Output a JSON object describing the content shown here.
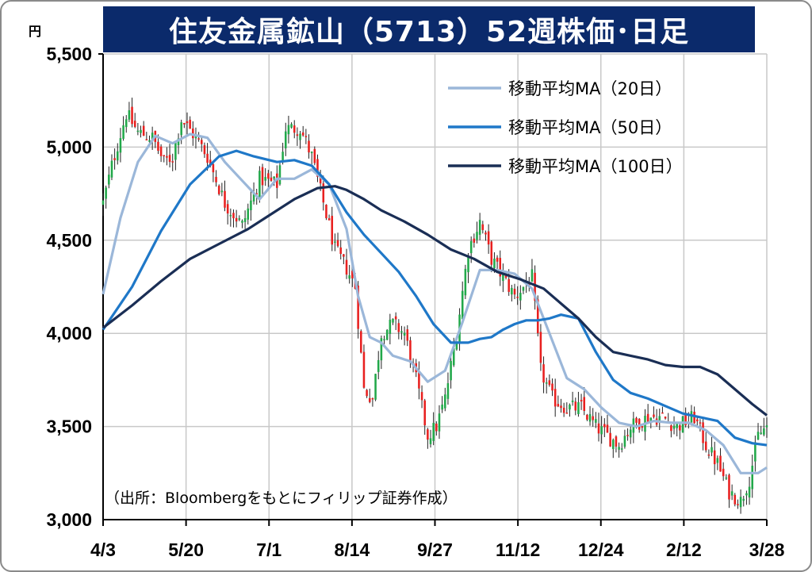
{
  "header": {
    "title": "住友金属鉱山（5713）52週株価･日足",
    "unit_label": "円"
  },
  "source_note": "（出所：Bloombergをもとにフィリップ証券作成）",
  "colors": {
    "title_bg": "#0b2a6b",
    "candle_up": "#22a84a",
    "candle_down": "#e8201f",
    "ma20": "#9bb7d9",
    "ma50": "#1f78c8",
    "ma100": "#1a2e55",
    "grid": "#c8c8c8"
  },
  "chart_data": {
    "type": "candlestick",
    "title": "住友金属鉱山（5713）52週株価･日足",
    "ylabel": "円",
    "ylim": [
      3000,
      5500
    ],
    "yticks": [
      3000,
      3500,
      4000,
      4500,
      5000,
      5500
    ],
    "ytick_labels": [
      "3,000",
      "3,500",
      "4,000",
      "4,500",
      "5,000",
      "5,500"
    ],
    "x_tick_labels": [
      "4/3",
      "5/20",
      "7/1",
      "8/14",
      "9/27",
      "11/12",
      "12/24",
      "2/12",
      "3/28"
    ],
    "grid": true,
    "legend_position": "top-right",
    "candles_description": "approximate daily closes read from chart",
    "close_anchors": [
      [
        0,
        4700
      ],
      [
        3,
        4900
      ],
      [
        8,
        5180
      ],
      [
        12,
        5080
      ],
      [
        17,
        5050
      ],
      [
        21,
        4920
      ],
      [
        24,
        4950
      ],
      [
        27,
        5150
      ],
      [
        32,
        5050
      ],
      [
        36,
        4950
      ],
      [
        42,
        4700
      ],
      [
        48,
        4580
      ],
      [
        54,
        4830
      ],
      [
        60,
        4800
      ],
      [
        63,
        5100
      ],
      [
        68,
        5100
      ],
      [
        72,
        4950
      ],
      [
        76,
        4700
      ],
      [
        80,
        4450
      ],
      [
        84,
        4350
      ],
      [
        87,
        4250
      ],
      [
        90,
        3700
      ],
      [
        93,
        3650
      ],
      [
        96,
        4000
      ],
      [
        100,
        4050
      ],
      [
        104,
        4000
      ],
      [
        108,
        3750
      ],
      [
        112,
        3450
      ],
      [
        115,
        3500
      ],
      [
        118,
        3650
      ],
      [
        122,
        4000
      ],
      [
        126,
        4450
      ],
      [
        130,
        4600
      ],
      [
        134,
        4400
      ],
      [
        138,
        4300
      ],
      [
        142,
        4200
      ],
      [
        148,
        4300
      ],
      [
        151,
        3800
      ],
      [
        155,
        3650
      ],
      [
        160,
        3600
      ],
      [
        165,
        3600
      ],
      [
        170,
        3500
      ],
      [
        174,
        3450
      ],
      [
        178,
        3400
      ],
      [
        182,
        3500
      ],
      [
        188,
        3550
      ],
      [
        193,
        3550
      ],
      [
        198,
        3500
      ],
      [
        204,
        3550
      ],
      [
        208,
        3400
      ],
      [
        212,
        3300
      ],
      [
        216,
        3150
      ],
      [
        220,
        3100
      ],
      [
        223,
        3220
      ],
      [
        226,
        3450
      ],
      [
        229,
        3500
      ]
    ],
    "series": [
      {
        "name": "移動平均MA（20日）",
        "x": [
          0,
          6,
          12,
          18,
          24,
          30,
          36,
          42,
          48,
          54,
          60,
          66,
          72,
          78,
          84,
          88,
          92,
          96,
          100,
          106,
          112,
          118,
          124,
          130,
          136,
          142,
          148,
          154,
          160,
          166,
          172,
          178,
          184,
          190,
          196,
          202,
          208,
          214,
          220,
          226,
          229
        ],
        "values": [
          4210,
          4620,
          4920,
          5060,
          5020,
          5070,
          5050,
          4920,
          4820,
          4720,
          4830,
          4830,
          4880,
          4800,
          4560,
          4200,
          3980,
          3950,
          3880,
          3850,
          3740,
          3800,
          4060,
          4340,
          4340,
          4320,
          4240,
          4000,
          3760,
          3700,
          3600,
          3520,
          3500,
          3530,
          3520,
          3520,
          3480,
          3400,
          3250,
          3250,
          3280
        ]
      },
      {
        "name": "移動平均MA（50日）",
        "x": [
          0,
          10,
          20,
          30,
          40,
          46,
          52,
          60,
          66,
          72,
          78,
          84,
          90,
          96,
          102,
          108,
          114,
          120,
          126,
          130,
          134,
          138,
          142,
          146,
          150,
          154,
          158,
          164,
          170,
          176,
          182,
          188,
          194,
          200,
          206,
          212,
          218,
          224,
          229
        ],
        "values": [
          4020,
          4250,
          4550,
          4800,
          4950,
          4980,
          4950,
          4920,
          4930,
          4900,
          4800,
          4650,
          4530,
          4430,
          4330,
          4200,
          4050,
          3950,
          3950,
          3970,
          3980,
          4020,
          4050,
          4070,
          4070,
          4080,
          4100,
          4080,
          3900,
          3750,
          3680,
          3650,
          3610,
          3570,
          3550,
          3530,
          3440,
          3410,
          3400
        ]
      },
      {
        "name": "移動平均MA（100日）",
        "x": [
          0,
          10,
          20,
          30,
          40,
          50,
          58,
          66,
          74,
          80,
          84,
          90,
          96,
          104,
          112,
          120,
          128,
          136,
          144,
          152,
          158,
          164,
          170,
          176,
          182,
          188,
          194,
          200,
          206,
          212,
          218,
          224,
          229
        ],
        "values": [
          4030,
          4150,
          4280,
          4400,
          4480,
          4560,
          4640,
          4720,
          4780,
          4790,
          4770,
          4720,
          4660,
          4600,
          4530,
          4450,
          4400,
          4330,
          4290,
          4240,
          4160,
          4080,
          3980,
          3900,
          3880,
          3860,
          3830,
          3820,
          3820,
          3780,
          3700,
          3620,
          3560
        ]
      }
    ]
  }
}
